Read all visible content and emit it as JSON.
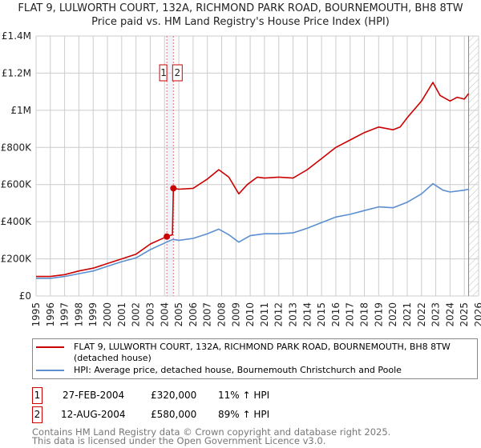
{
  "title_line1": "FLAT 9, LULWORTH COURT, 132A, RICHMOND PARK ROAD, BOURNEMOUTH, BH8 8TW",
  "title_line2": "Price paid vs. HM Land Registry's House Price Index (HPI)",
  "legend": {
    "property": "FLAT 9, LULWORTH COURT, 132A, RICHMOND PARK ROAD, BOURNEMOUTH, BH8 8TW (detached house)",
    "hpi": "HPI: Average price, detached house, Bournemouth Christchurch and Poole"
  },
  "transactions": [
    {
      "num": "1",
      "date": "27-FEB-2004",
      "price": "£320,000",
      "hpi": "11% ↑ HPI"
    },
    {
      "num": "2",
      "date": "12-AUG-2004",
      "price": "£580,000",
      "hpi": "89% ↑ HPI"
    }
  ],
  "footer": {
    "line1": "Contains HM Land Registry data © Crown copyright and database right 2025.",
    "line2": "This data is licensed under the Open Government Licence v3.0."
  },
  "colors": {
    "property": "#cc0000",
    "hpi": "#5b8fd0",
    "band": "#eef4fc",
    "grid": "#cccccc"
  },
  "chart_data": {
    "type": "line",
    "title": "Price paid vs. HM Land Registry's House Price Index (HPI)",
    "xlim": [
      1995,
      2026
    ],
    "ylim": [
      0,
      1400000
    ],
    "x_ticks": [
      1995,
      1996,
      1997,
      1998,
      1999,
      2000,
      2001,
      2002,
      2003,
      2004,
      2005,
      2006,
      2007,
      2008,
      2009,
      2010,
      2011,
      2012,
      2013,
      2014,
      2015,
      2016,
      2017,
      2018,
      2019,
      2020,
      2021,
      2022,
      2023,
      2024,
      2025,
      2026
    ],
    "y_ticks": [
      0,
      200000,
      400000,
      600000,
      800000,
      1000000,
      1200000,
      1400000
    ],
    "y_tick_labels": [
      "£0",
      "£200K",
      "£400K",
      "£600K",
      "£800K",
      "£1M",
      "£1.2M",
      "£1.4M"
    ],
    "grid": true,
    "sales": [
      {
        "label": "1",
        "x": 2004.16,
        "y": 320000
      },
      {
        "label": "2",
        "x": 2004.62,
        "y": 580000
      }
    ],
    "forecast_from": 2025.3,
    "series": [
      {
        "name": "property",
        "points": [
          [
            1995,
            105000
          ],
          [
            1996,
            105000
          ],
          [
            1997,
            115000
          ],
          [
            1998,
            135000
          ],
          [
            1999,
            150000
          ],
          [
            2000,
            175000
          ],
          [
            2001,
            200000
          ],
          [
            2002,
            225000
          ],
          [
            2003,
            280000
          ],
          [
            2004.16,
            320000
          ],
          [
            2004.55,
            330000
          ],
          [
            2004.62,
            580000
          ],
          [
            2005,
            575000
          ],
          [
            2006,
            580000
          ],
          [
            2007,
            630000
          ],
          [
            2007.8,
            680000
          ],
          [
            2008.5,
            640000
          ],
          [
            2009.2,
            550000
          ],
          [
            2009.8,
            600000
          ],
          [
            2010.5,
            640000
          ],
          [
            2011,
            635000
          ],
          [
            2012,
            640000
          ],
          [
            2013,
            635000
          ],
          [
            2014,
            680000
          ],
          [
            2015,
            740000
          ],
          [
            2016,
            800000
          ],
          [
            2017,
            840000
          ],
          [
            2018,
            880000
          ],
          [
            2019,
            910000
          ],
          [
            2020,
            895000
          ],
          [
            2020.5,
            910000
          ],
          [
            2021,
            960000
          ],
          [
            2022,
            1050000
          ],
          [
            2022.8,
            1150000
          ],
          [
            2023.3,
            1080000
          ],
          [
            2024,
            1050000
          ],
          [
            2024.5,
            1070000
          ],
          [
            2025,
            1060000
          ],
          [
            2025.3,
            1090000
          ]
        ]
      },
      {
        "name": "hpi",
        "points": [
          [
            1995,
            95000
          ],
          [
            1996,
            95000
          ],
          [
            1997,
            105000
          ],
          [
            1998,
            120000
          ],
          [
            1999,
            135000
          ],
          [
            2000,
            160000
          ],
          [
            2001,
            185000
          ],
          [
            2002,
            205000
          ],
          [
            2003,
            250000
          ],
          [
            2004,
            285000
          ],
          [
            2004.6,
            305000
          ],
          [
            2005,
            300000
          ],
          [
            2006,
            310000
          ],
          [
            2007,
            335000
          ],
          [
            2007.8,
            360000
          ],
          [
            2008.5,
            330000
          ],
          [
            2009.2,
            290000
          ],
          [
            2010,
            325000
          ],
          [
            2011,
            335000
          ],
          [
            2012,
            335000
          ],
          [
            2013,
            340000
          ],
          [
            2014,
            365000
          ],
          [
            2015,
            395000
          ],
          [
            2016,
            425000
          ],
          [
            2017,
            440000
          ],
          [
            2018,
            460000
          ],
          [
            2019,
            480000
          ],
          [
            2020,
            475000
          ],
          [
            2021,
            505000
          ],
          [
            2022,
            550000
          ],
          [
            2022.8,
            605000
          ],
          [
            2023.5,
            570000
          ],
          [
            2024,
            560000
          ],
          [
            2025,
            570000
          ],
          [
            2025.3,
            575000
          ]
        ]
      }
    ]
  }
}
